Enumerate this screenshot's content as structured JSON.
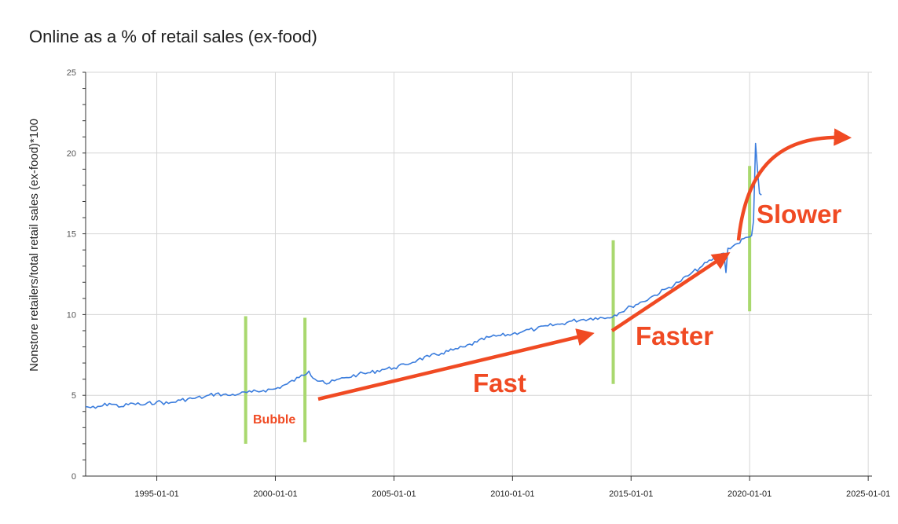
{
  "chart_data": {
    "type": "line",
    "title": "Online as a % of retail sales (ex-food)",
    "ylabel": "Nonstore retailers/total retail sales (ex-food)*100",
    "xlabel": "",
    "ylim": [
      0,
      25
    ],
    "xlim": [
      "1992-01-01",
      "2025-03-01"
    ],
    "y_ticks": [
      0,
      5,
      10,
      15,
      20,
      25
    ],
    "x_ticks": [
      "1995-01-01",
      "2000-01-01",
      "2005-01-01",
      "2010-01-01",
      "2015-01-01",
      "2020-01-01",
      "2025-01-01"
    ],
    "grid": true,
    "legend": "none",
    "series": [
      {
        "color": "#3b7ddd",
        "points": [
          [
            "1992-01-01",
            4.3
          ],
          [
            "1992-06-01",
            4.2
          ],
          [
            "1993-01-01",
            4.5
          ],
          [
            "1993-07-01",
            4.3
          ],
          [
            "1994-01-01",
            4.5
          ],
          [
            "1994-06-01",
            4.4
          ],
          [
            "1995-01-01",
            4.6
          ],
          [
            "1995-07-01",
            4.5
          ],
          [
            "1996-01-01",
            4.7
          ],
          [
            "1996-07-01",
            4.8
          ],
          [
            "1997-01-01",
            4.9
          ],
          [
            "1997-07-01",
            5.1
          ],
          [
            "1998-01-01",
            5.0
          ],
          [
            "1998-07-01",
            5.1
          ],
          [
            "1999-01-01",
            5.2
          ],
          [
            "1999-07-01",
            5.3
          ],
          [
            "2000-01-01",
            5.4
          ],
          [
            "2000-07-01",
            5.7
          ],
          [
            "2001-01-01",
            6.1
          ],
          [
            "2001-06-01",
            6.5
          ],
          [
            "2001-09-01",
            6.0
          ],
          [
            "2002-01-01",
            5.9
          ],
          [
            "2002-03-01",
            5.7
          ],
          [
            "2002-07-01",
            5.9
          ],
          [
            "2003-01-01",
            6.1
          ],
          [
            "2003-07-01",
            6.3
          ],
          [
            "2004-01-01",
            6.4
          ],
          [
            "2004-07-01",
            6.6
          ],
          [
            "2005-01-01",
            6.7
          ],
          [
            "2005-07-01",
            6.9
          ],
          [
            "2006-01-01",
            7.2
          ],
          [
            "2006-07-01",
            7.4
          ],
          [
            "2007-01-01",
            7.6
          ],
          [
            "2007-07-01",
            7.8
          ],
          [
            "2008-01-01",
            8.0
          ],
          [
            "2008-07-01",
            8.3
          ],
          [
            "2009-01-01",
            8.6
          ],
          [
            "2009-07-01",
            8.7
          ],
          [
            "2010-01-01",
            8.8
          ],
          [
            "2010-07-01",
            9.0
          ],
          [
            "2011-01-01",
            9.1
          ],
          [
            "2011-07-01",
            9.3
          ],
          [
            "2012-01-01",
            9.4
          ],
          [
            "2012-07-01",
            9.6
          ],
          [
            "2013-01-01",
            9.7
          ],
          [
            "2013-07-01",
            9.8
          ],
          [
            "2014-01-01",
            9.8
          ],
          [
            "2014-07-01",
            10.1
          ],
          [
            "2015-01-01",
            10.5
          ],
          [
            "2015-07-01",
            10.8
          ],
          [
            "2016-01-01",
            11.2
          ],
          [
            "2016-07-01",
            11.6
          ],
          [
            "2017-01-01",
            12.0
          ],
          [
            "2017-07-01",
            12.5
          ],
          [
            "2018-01-01",
            13.0
          ],
          [
            "2018-07-01",
            13.5
          ],
          [
            "2018-12-01",
            13.8
          ],
          [
            "2019-01-01",
            12.6
          ],
          [
            "2019-02-01",
            14.1
          ],
          [
            "2019-07-01",
            14.4
          ],
          [
            "2019-10-01",
            14.7
          ],
          [
            "2020-01-01",
            14.8
          ],
          [
            "2020-02-01",
            14.9
          ],
          [
            "2020-03-01",
            15.8
          ],
          [
            "2020-04-01",
            20.6
          ],
          [
            "2020-05-01",
            19.0
          ],
          [
            "2020-06-01",
            17.5
          ],
          [
            "2020-07-01",
            17.4
          ]
        ]
      }
    ],
    "annotations": [
      {
        "text": "Bubble",
        "color": "#f04a23"
      },
      {
        "text": "Fast",
        "color": "#f04a23"
      },
      {
        "text": "Faster",
        "color": "#f04a23"
      },
      {
        "text": "Slower",
        "color": "#f04a23"
      }
    ],
    "markers_color": "#a9d86e",
    "arrow_color": "#f04a23"
  }
}
